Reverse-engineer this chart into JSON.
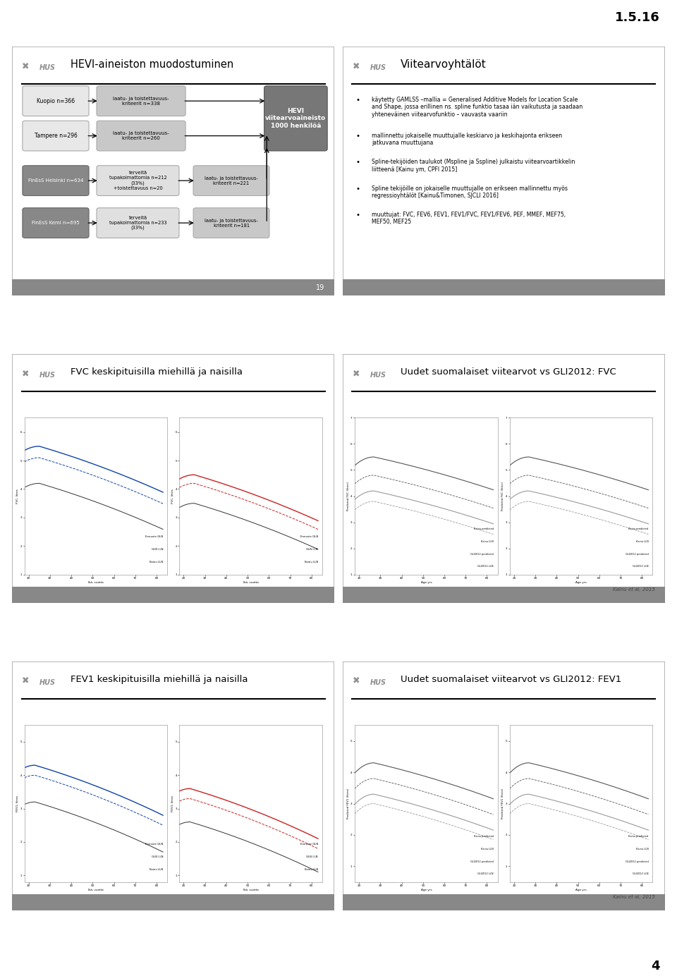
{
  "page_number_top": "1.5.16",
  "page_number_bottom": "4",
  "panel1_title": "HEVI-aineiston muodostuminen",
  "panel2_title": "Viitearvoyhtälöt",
  "panel3_title": "FVC keskipituisilla miehillä ja naisilla",
  "panel4_title": "Uudet suomalaiset viitearvot vs GLI2012: FVC",
  "panel5_title": "FEV1 keskipituisilla miehillä ja naisilla",
  "panel6_title": "Uudet suomalaiset viitearvot vs GLI2012: FEV1",
  "bullet1": "käytetty GAMLSS –mallia = Generalised Additive Models for Location Scale\nand Shape, jossa erillinen ns. spline funktio tasaa iän vaikutusta ja saadaan\nyhteneväinen viitearvofunktio – vauvasta vaariin",
  "bullet2": "mallinnettu jokaiselle muuttujalle keskiarvo ja keskihajonta erikseen\njatkuvana muuttujana",
  "bullet3": "Spline-tekijöiden taulukot (Mspline ja Sspline) julkaistu viitearvoartikkelin\nliitteenä [Kainu ym, CPFI 2015]",
  "bullet4": "Spline tekijöille on jokaiselle muuttujalle on erikseen mallinnettu myös\nregressioyhtälöt [Kainu&Timonen, SJCLI 2016]",
  "bullet5": "muuttujat: FVC, FEV6, FEV1, FEV1/FVC, FEV1/FEV6, PEF, MMEF, MEF75,\nMEF50, MEF25",
  "kainu_ref": "Kainu et al, 2015",
  "slide_number_19": "19",
  "flowchart": {
    "kuopio": "Kuopio n=366",
    "tampere": "Tampere n=296",
    "finess_hki": "FinEsS Helsinki n=634",
    "finess_kemi": "FinEsS Kemi n=695",
    "laatu1": "laatu- ja toistettavuus-\nkriteerit n=338",
    "laatu2": "laatu- ja toistettavuus-\nkriteerit n=260",
    "terveia_hki": "terveitä\ntupakoimattomia n=212\n(33%)\n+toistettavuus n=20",
    "laatu3": "laatu- ja toistettavuus-\nkriteerit n=221",
    "terveia_kemi": "terveitä\ntupakoimattomia n=233\n(33%)",
    "laatu4": "laatu- ja toistettavuus-\nkriteerit n=181",
    "hevi": "HEVI\nviitearvoaineisto\n1000 henkilöä"
  }
}
